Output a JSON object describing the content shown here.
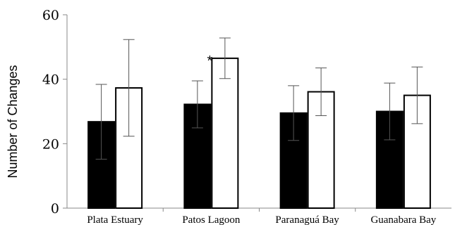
{
  "chart_data": {
    "type": "bar",
    "title": "",
    "xlabel": "",
    "ylabel": "Number of Changes",
    "ylim": [
      0,
      60
    ],
    "yticks": [
      "0",
      "20",
      "40",
      "60"
    ],
    "categories": [
      "Plata Estuary",
      "Patos Lagoon",
      "Paranaguá Bay",
      "Guanabara Bay"
    ],
    "series": [
      {
        "color": "#000000",
        "values": [
          26.8,
          32.2,
          29.5,
          30.0
        ],
        "error": [
          11.6,
          7.3,
          8.5,
          8.8
        ]
      },
      {
        "color": "#ffffff",
        "values": [
          37.3,
          46.5,
          36.1,
          35.0
        ],
        "error": [
          15.0,
          6.3,
          7.4,
          8.8
        ]
      }
    ],
    "annotations": [
      {
        "text": "*",
        "category": "Patos Lagoon",
        "value": 49.5
      }
    ],
    "grid": false,
    "legend": "none"
  }
}
